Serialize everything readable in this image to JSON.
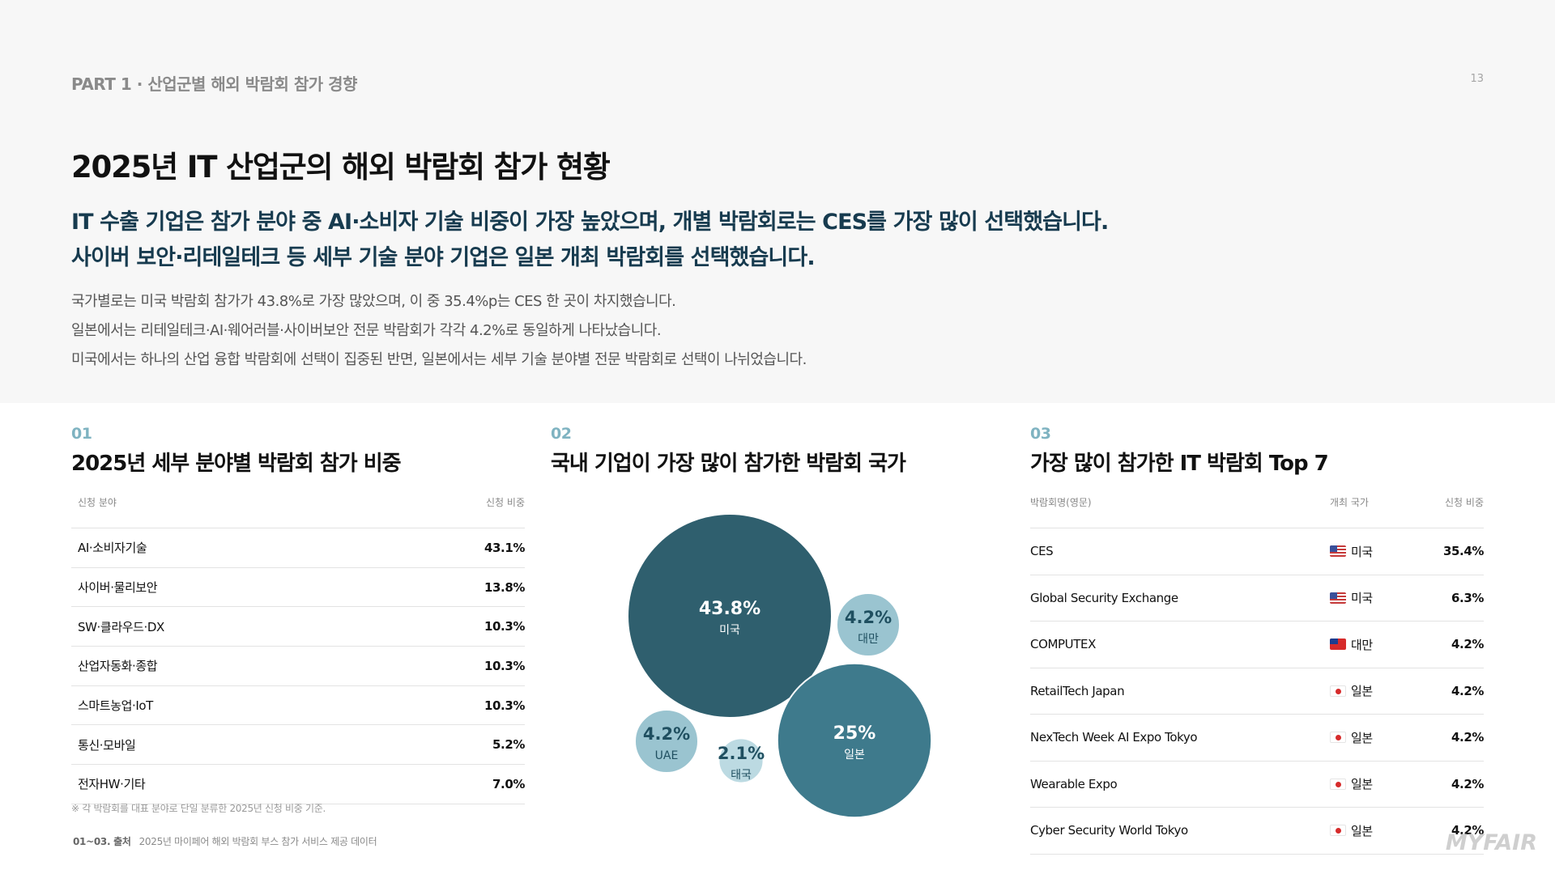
{
  "header": {
    "part": "PART 1 · 산업군별 해외 박람회 참가 경향",
    "page_number": "13",
    "title": "2025년 IT 산업군의 해외 박람회 참가 현황",
    "lead_line1": "IT 수출 기업은 참가 분야 중 AI·소비자 기술 비중이 가장 높았으며, 개별 박람회로는 CES를 가장 많이 선택했습니다.",
    "lead_line2": "사이버 보안·리테일테크 등 세부 기술 분야 기업은 일본 개최 박람회를 선택했습니다.",
    "body_lines": [
      "국가별로는 미국 박람회 참가가 43.8%로 가장 많았으며, 이 중 35.4%p는 CES 한 곳이 차지했습니다.",
      "일본에서는 리테일테크·AI·웨어러블·사이버보안 전문 박람회가 각각 4.2%로 동일하게 나타났습니다.",
      "미국에서는 하나의 산업 융합 박람회에 선택이 집중된 반면, 일본에서는 세부 기술 분야별 전문 박람회로 선택이 나뉘었습니다."
    ]
  },
  "section1": {
    "number": "01",
    "title": "2025년 세부 분야별 박람회 참가 비중",
    "col_field": "신청 분야",
    "col_ratio": "신청 비중",
    "rows": [
      {
        "field": "AI·소비자기술",
        "ratio": "43.1%"
      },
      {
        "field": "사이버·물리보안",
        "ratio": "13.8%"
      },
      {
        "field": "SW·클라우드·DX",
        "ratio": "10.3%"
      },
      {
        "field": "산업자동화·종합",
        "ratio": "10.3%"
      },
      {
        "field": "스마트농업·IoT",
        "ratio": "10.3%"
      },
      {
        "field": "통신·모바일",
        "ratio": "5.2%"
      },
      {
        "field": "전자HW·기타",
        "ratio": "7.0%"
      }
    ],
    "note": "※ 각 박람회를 대표 분야로 단일 분류한 2025년 신청 비중 기준."
  },
  "section2": {
    "number": "02",
    "title": "국내 기업이 가장 많이 참가한 박람회 국가"
  },
  "chart_data": {
    "type": "bubble",
    "series": [
      {
        "label": "미국",
        "value": 43.8,
        "display": "43.8%",
        "color": "#2f5f6e"
      },
      {
        "label": "일본",
        "value": 25,
        "display": "25%",
        "color": "#3e7a8c"
      },
      {
        "label": "대만",
        "value": 4.2,
        "display": "4.2%",
        "color": "#9ac4d0"
      },
      {
        "label": "UAE",
        "value": 4.2,
        "display": "4.2%",
        "color": "#9ac4d0"
      },
      {
        "label": "태국",
        "value": 2.1,
        "display": "2.1%",
        "color": "#bcdae2"
      }
    ]
  },
  "section3": {
    "number": "03",
    "title": "가장 많이 참가한 IT 박람회 Top 7",
    "col_name": "박람회명(영문)",
    "col_country": "개최 국가",
    "col_ratio": "신청 비중",
    "rows": [
      {
        "name": "CES",
        "country": "미국",
        "flag": "us-flag",
        "ratio": "35.4%"
      },
      {
        "name": "Global Security Exchange",
        "country": "미국",
        "flag": "us-flag",
        "ratio": "6.3%"
      },
      {
        "name": "COMPUTEX",
        "country": "대만",
        "flag": "taiwan-flag",
        "ratio": "4.2%"
      },
      {
        "name": "RetailTech Japan",
        "country": "일본",
        "flag": "japan-flag",
        "ratio": "4.2%"
      },
      {
        "name": "NexTech Week AI Expo Tokyo",
        "country": "일본",
        "flag": "japan-flag",
        "ratio": "4.2%"
      },
      {
        "name": "Wearable Expo",
        "country": "일본",
        "flag": "japan-flag",
        "ratio": "4.2%"
      },
      {
        "name": "Cyber Security World Tokyo",
        "country": "일본",
        "flag": "japan-flag",
        "ratio": "4.2%"
      }
    ]
  },
  "footer": {
    "source_label": "01~03. 출처",
    "source_text": "2025년 마이페어 해외 박람회 부스 참가 서비스 제공 데이터",
    "brand": "MYFAIR"
  }
}
